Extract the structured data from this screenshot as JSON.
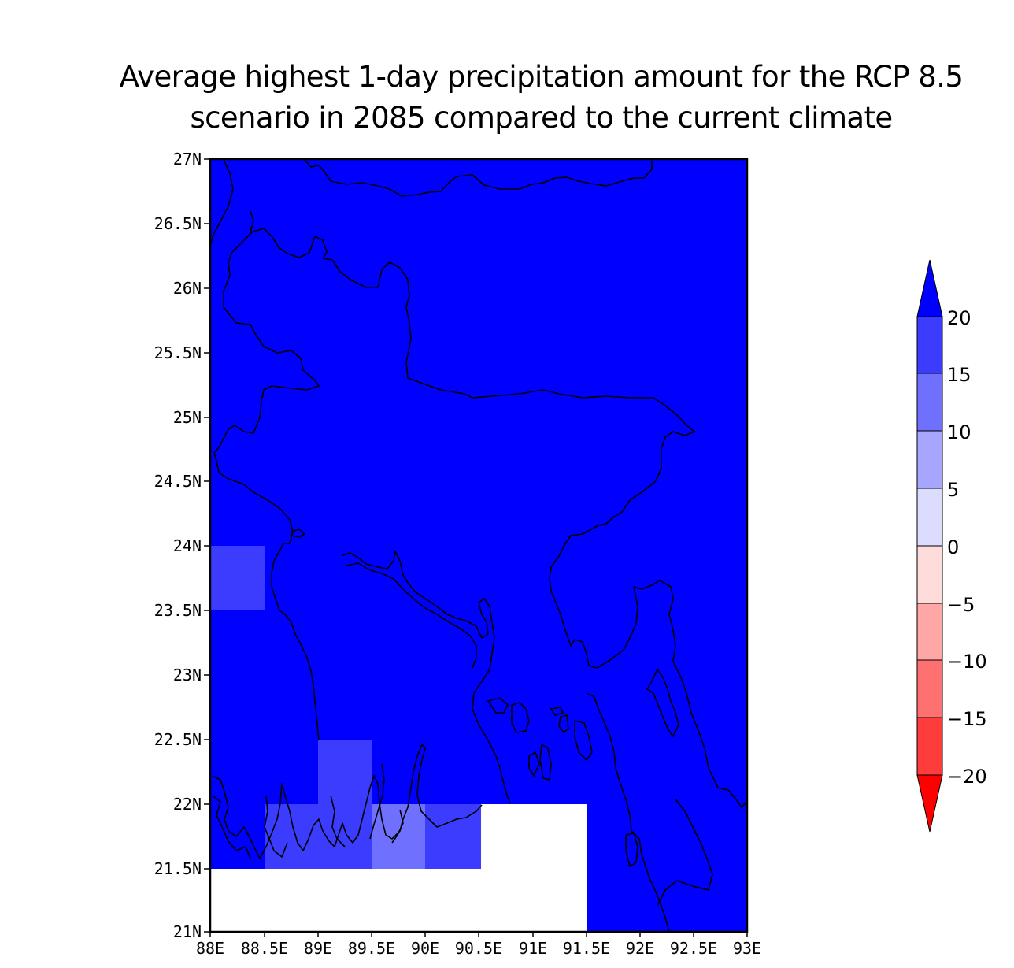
{
  "title": {
    "line1": "Average highest 1-day precipitation amount for the RCP 8.5",
    "line2": "scenario in 2085 compared to the current climate"
  },
  "map": {
    "lat_ticks": [
      "27N",
      "26.5N",
      "26N",
      "25.5N",
      "25N",
      "24.5N",
      "24N",
      "23.5N",
      "23N",
      "22.5N",
      "22N",
      "21.5N",
      "21N"
    ],
    "lon_ticks": [
      "88E",
      "88.5E",
      "89E",
      "89.5E",
      "90E",
      "90.5E",
      "91E",
      "91.5E",
      "92E",
      "92.5E",
      "93E"
    ],
    "base_color": "#0000ff",
    "no_data_color": "#ffffff"
  },
  "colorbar": {
    "labels": [
      "20",
      "15",
      "10",
      "5",
      "0",
      "−5",
      "−10",
      "−15",
      "−20"
    ],
    "colors": {
      "above_20": "#0000ff",
      "15_20": "#3c3cff",
      "10_15": "#7070ff",
      "5_10": "#a6a6ff",
      "0_5": "#dcdcff",
      "m5_0": "#ffdcdc",
      "m10_m5": "#ffa6a6",
      "m15_m10": "#ff7070",
      "m20_m15": "#ff3c3c",
      "below_m20": "#ff0000"
    }
  }
}
